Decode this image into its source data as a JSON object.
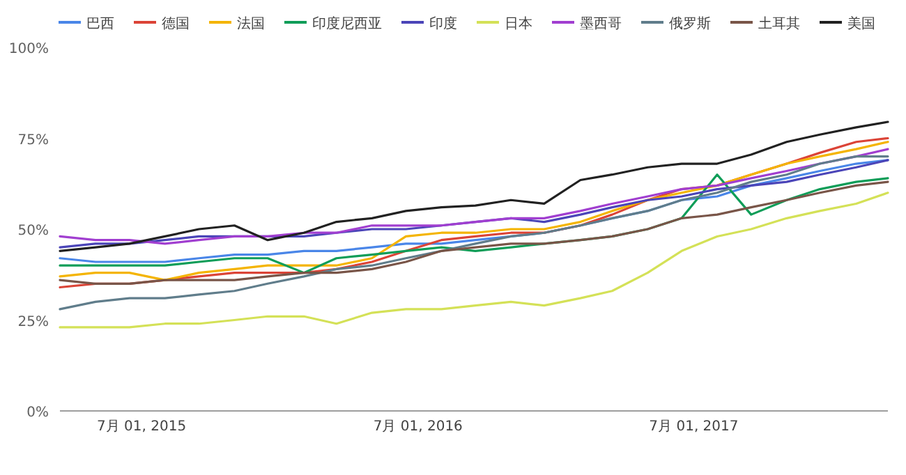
{
  "chart_data": {
    "type": "line",
    "legend": "top",
    "grid": false,
    "x": [
      "2015-03-15",
      "2015-05-01",
      "2015-06-15",
      "2015-08-01",
      "2015-09-15",
      "2015-11-01",
      "2015-12-15",
      "2016-02-01",
      "2016-03-15",
      "2016-05-01",
      "2016-06-15",
      "2016-08-01",
      "2016-09-15",
      "2016-11-01",
      "2016-12-15",
      "2017-02-01",
      "2017-03-15",
      "2017-05-01",
      "2017-06-15",
      "2017-08-01",
      "2017-09-15",
      "2017-11-01",
      "2017-12-15",
      "2018-02-01",
      "2018-03-15"
    ],
    "xlim": [
      "2015-03-15",
      "2018-03-15"
    ],
    "xticks": [
      {
        "value": "2015-07-01",
        "label": "7月 01, 2015"
      },
      {
        "value": "2016-07-01",
        "label": "7月 01, 2016"
      },
      {
        "value": "2017-07-01",
        "label": "7月 01, 2017"
      }
    ],
    "ylim": [
      0,
      100
    ],
    "yticks": [
      {
        "value": 0,
        "label": "0%"
      },
      {
        "value": 25,
        "label": "25%"
      },
      {
        "value": 50,
        "label": "50%"
      },
      {
        "value": 75,
        "label": "75%"
      },
      {
        "value": 100,
        "label": "100%"
      }
    ],
    "series": [
      {
        "name": "巴西",
        "color": "#4a86e8",
        "values": [
          42,
          41,
          41,
          41,
          42,
          43,
          43,
          44,
          44,
          45,
          46,
          46,
          47,
          48,
          49,
          51,
          53,
          55,
          58,
          59,
          62,
          64,
          66,
          68,
          69
        ]
      },
      {
        "name": "德国",
        "color": "#db4437",
        "values": [
          34,
          35,
          35,
          36,
          37,
          38,
          38,
          38,
          39,
          41,
          44,
          47,
          48,
          49,
          49,
          51,
          54,
          58,
          61,
          62,
          65,
          68,
          71,
          74,
          75
        ]
      },
      {
        "name": "法国",
        "color": "#f4b400",
        "values": [
          37,
          38,
          38,
          36,
          38,
          39,
          40,
          40,
          40,
          42,
          48,
          49,
          49,
          50,
          50,
          52,
          55,
          58,
          60,
          62,
          65,
          68,
          70,
          72,
          74
        ]
      },
      {
        "name": "印度尼西亚",
        "color": "#0f9d58",
        "values": [
          40,
          40,
          40,
          40,
          41,
          42,
          42,
          38,
          42,
          43,
          44,
          45,
          44,
          45,
          46,
          47,
          48,
          50,
          53,
          65,
          54,
          58,
          61,
          63,
          64
        ]
      },
      {
        "name": "印度",
        "color": "#4b45b8",
        "values": [
          45,
          46,
          46,
          47,
          48,
          48,
          48,
          48,
          49,
          50,
          50,
          51,
          52,
          53,
          52,
          54,
          56,
          58,
          59,
          61,
          62,
          63,
          65,
          67,
          69
        ]
      },
      {
        "name": "日本",
        "color": "#d4e157",
        "values": [
          23,
          23,
          23,
          24,
          24,
          25,
          26,
          26,
          24,
          27,
          28,
          28,
          29,
          30,
          29,
          31,
          33,
          38,
          44,
          48,
          50,
          53,
          55,
          57,
          60
        ]
      },
      {
        "name": "墨西哥",
        "color": "#a13fd0",
        "values": [
          48,
          47,
          47,
          46,
          47,
          48,
          48,
          49,
          49,
          51,
          51,
          51,
          52,
          53,
          53,
          55,
          57,
          59,
          61,
          62,
          64,
          66,
          68,
          70,
          72
        ]
      },
      {
        "name": "俄罗斯",
        "color": "#607d8b",
        "values": [
          28,
          30,
          31,
          31,
          32,
          33,
          35,
          37,
          39,
          40,
          42,
          44,
          46,
          48,
          49,
          51,
          53,
          55,
          58,
          60,
          63,
          65,
          68,
          70,
          70
        ]
      },
      {
        "name": "土耳其",
        "color": "#795548",
        "values": [
          36,
          35,
          35,
          36,
          36,
          36,
          37,
          38,
          38,
          39,
          41,
          44,
          45,
          46,
          46,
          47,
          48,
          50,
          53,
          54,
          56,
          58,
          60,
          62,
          63
        ]
      },
      {
        "name": "美国",
        "color": "#212121",
        "values": [
          44,
          45,
          46,
          48,
          50,
          51,
          47,
          49,
          52,
          53,
          55,
          56,
          56.5,
          58,
          57,
          63.5,
          65,
          67,
          68,
          68,
          70.5,
          74,
          76,
          78,
          79.5
        ]
      }
    ]
  }
}
